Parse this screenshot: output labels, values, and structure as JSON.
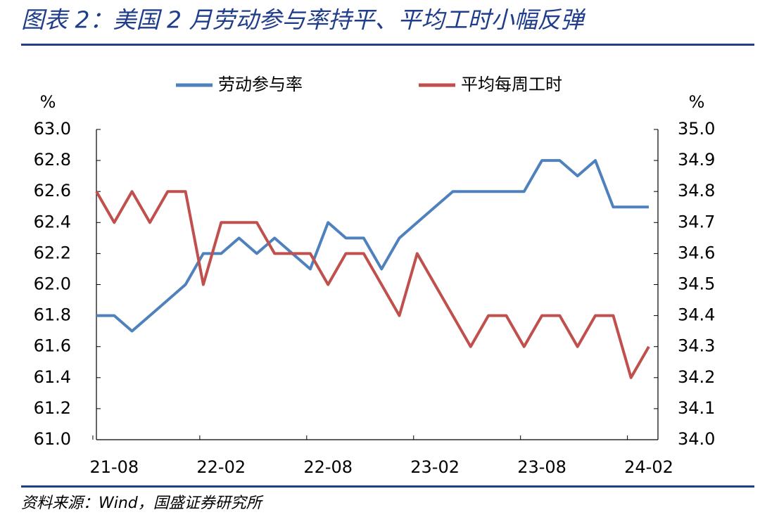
{
  "title": "图表 2：美国 2 月劳动参与率持平、平均工时小幅反弹",
  "source": "资料来源：Wind，国盛证券研究所",
  "chart_data": {
    "type": "line",
    "ylabel": "%",
    "y2label": "%",
    "categories": [
      null,
      "21-08",
      null,
      null,
      null,
      null,
      null,
      "22-02",
      null,
      null,
      null,
      null,
      null,
      "22-08",
      null,
      null,
      null,
      null,
      null,
      "23-02",
      null,
      null,
      null,
      null,
      null,
      "23-08",
      null,
      null,
      null,
      null,
      null,
      "24-02"
    ],
    "series": [
      {
        "name": "劳动参与率",
        "color": "#4f81bd",
        "values": [
          61.8,
          61.8,
          61.7,
          61.8,
          61.9,
          62.0,
          62.2,
          62.2,
          62.3,
          62.2,
          62.3,
          62.2,
          62.1,
          62.4,
          62.3,
          62.3,
          62.1,
          62.3,
          62.4,
          62.5,
          62.6,
          62.6,
          62.6,
          62.6,
          62.6,
          62.8,
          62.8,
          62.7,
          62.8,
          62.5,
          62.5,
          62.5
        ]
      },
      {
        "name": "平均每周工时",
        "color": "#c0504d",
        "axis": "y2",
        "values": [
          34.8,
          34.7,
          34.8,
          34.7,
          34.8,
          34.8,
          34.5,
          34.7,
          34.7,
          34.7,
          34.6,
          34.6,
          34.6,
          34.5,
          34.6,
          34.6,
          34.5,
          34.4,
          34.6,
          34.5,
          34.4,
          34.3,
          34.4,
          34.4,
          34.3,
          34.4,
          34.4,
          34.3,
          34.4,
          34.4,
          34.2,
          34.3
        ]
      }
    ],
    "ylim": [
      61.0,
      63.0
    ],
    "yticks": [
      {
        "value": 61.0,
        "label": "61.0"
      },
      {
        "value": 61.2,
        "label": "61.2"
      },
      {
        "value": 61.4,
        "label": "61.4"
      },
      {
        "value": 61.6,
        "label": "61.6"
      },
      {
        "value": 61.8,
        "label": "61.8"
      },
      {
        "value": 62.0,
        "label": "62.0"
      },
      {
        "value": 62.2,
        "label": "62.2"
      },
      {
        "value": 62.4,
        "label": "62.4"
      },
      {
        "value": 62.6,
        "label": "62.6"
      },
      {
        "value": 62.8,
        "label": "62.8"
      },
      {
        "value": 63.0,
        "label": "63.0"
      }
    ],
    "y2lim": [
      34.0,
      35.0
    ],
    "y2ticks": [
      {
        "value": 34.0,
        "label": "34.0"
      },
      34.1,
      34.2,
      34.3,
      34.4,
      34.5,
      34.6,
      34.7,
      34.8,
      34.9,
      {
        "value": 35.0,
        "label": "35.0"
      }
    ],
    "legend": "top",
    "grid": false
  }
}
